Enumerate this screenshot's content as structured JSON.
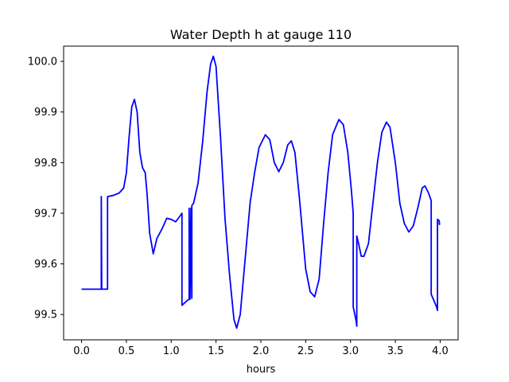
{
  "chart_data": {
    "type": "line",
    "title": "Water Depth h at gauge 110",
    "xlabel": "hours",
    "ylabel": "",
    "xlim": [
      -0.2,
      4.2
    ],
    "ylim": [
      99.45,
      100.03
    ],
    "xticks": [
      0.0,
      0.5,
      1.0,
      1.5,
      2.0,
      2.5,
      3.0,
      3.5,
      4.0
    ],
    "xtick_labels": [
      "0.0",
      "0.5",
      "1.0",
      "1.5",
      "2.0",
      "2.5",
      "3.0",
      "3.5",
      "4.0"
    ],
    "yticks": [
      99.5,
      99.6,
      99.7,
      99.8,
      99.9,
      100.0
    ],
    "ytick_labels": [
      "99.5",
      "99.6",
      "99.7",
      "99.8",
      "99.9",
      "100.0"
    ],
    "grid": false,
    "series": [
      {
        "color": "#0000ff",
        "points": [
          [
            0.0,
            99.55
          ],
          [
            0.22,
            99.55
          ],
          [
            0.22,
            99.733
          ],
          [
            0.225,
            99.55
          ],
          [
            0.29,
            99.55
          ],
          [
            0.29,
            99.733
          ],
          [
            0.35,
            99.735
          ],
          [
            0.42,
            99.74
          ],
          [
            0.47,
            99.75
          ],
          [
            0.5,
            99.78
          ],
          [
            0.53,
            99.85
          ],
          [
            0.56,
            99.91
          ],
          [
            0.59,
            99.925
          ],
          [
            0.62,
            99.9
          ],
          [
            0.65,
            99.82
          ],
          [
            0.68,
            99.79
          ],
          [
            0.71,
            99.78
          ],
          [
            0.73,
            99.74
          ],
          [
            0.76,
            99.66
          ],
          [
            0.8,
            99.62
          ],
          [
            0.84,
            99.65
          ],
          [
            0.9,
            99.67
          ],
          [
            0.95,
            99.69
          ],
          [
            1.0,
            99.688
          ],
          [
            1.05,
            99.683
          ],
          [
            1.1,
            99.695
          ],
          [
            1.12,
            99.7
          ],
          [
            1.12,
            99.518
          ],
          [
            1.18,
            99.528
          ],
          [
            1.2,
            99.53
          ],
          [
            1.2,
            99.71
          ],
          [
            1.21,
            99.53
          ],
          [
            1.22,
            99.71
          ],
          [
            1.23,
            99.532
          ],
          [
            1.23,
            99.715
          ],
          [
            1.25,
            99.72
          ],
          [
            1.3,
            99.76
          ],
          [
            1.35,
            99.84
          ],
          [
            1.4,
            99.94
          ],
          [
            1.44,
            99.995
          ],
          [
            1.47,
            100.01
          ],
          [
            1.5,
            99.99
          ],
          [
            1.55,
            99.85
          ],
          [
            1.6,
            99.69
          ],
          [
            1.65,
            99.58
          ],
          [
            1.7,
            99.49
          ],
          [
            1.73,
            99.473
          ],
          [
            1.77,
            99.5
          ],
          [
            1.82,
            99.6
          ],
          [
            1.88,
            99.72
          ],
          [
            1.93,
            99.78
          ],
          [
            1.98,
            99.83
          ],
          [
            2.05,
            99.855
          ],
          [
            2.1,
            99.845
          ],
          [
            2.15,
            99.8
          ],
          [
            2.2,
            99.782
          ],
          [
            2.25,
            99.8
          ],
          [
            2.3,
            99.835
          ],
          [
            2.34,
            99.843
          ],
          [
            2.38,
            99.82
          ],
          [
            2.43,
            99.73
          ],
          [
            2.5,
            99.59
          ],
          [
            2.55,
            99.545
          ],
          [
            2.6,
            99.535
          ],
          [
            2.65,
            99.57
          ],
          [
            2.7,
            99.68
          ],
          [
            2.75,
            99.78
          ],
          [
            2.8,
            99.855
          ],
          [
            2.87,
            99.885
          ],
          [
            2.92,
            99.875
          ],
          [
            2.97,
            99.82
          ],
          [
            3.01,
            99.745
          ],
          [
            3.03,
            99.7
          ],
          [
            3.03,
            99.515
          ],
          [
            3.06,
            99.49
          ],
          [
            3.07,
            99.477
          ],
          [
            3.07,
            99.655
          ],
          [
            3.09,
            99.64
          ],
          [
            3.12,
            99.615
          ],
          [
            3.15,
            99.615
          ],
          [
            3.2,
            99.64
          ],
          [
            3.25,
            99.72
          ],
          [
            3.3,
            99.8
          ],
          [
            3.35,
            99.86
          ],
          [
            3.4,
            99.88
          ],
          [
            3.44,
            99.87
          ],
          [
            3.5,
            99.8
          ],
          [
            3.55,
            99.72
          ],
          [
            3.6,
            99.68
          ],
          [
            3.65,
            99.663
          ],
          [
            3.7,
            99.675
          ],
          [
            3.75,
            99.71
          ],
          [
            3.8,
            99.75
          ],
          [
            3.83,
            99.754
          ],
          [
            3.87,
            99.74
          ],
          [
            3.9,
            99.725
          ],
          [
            3.9,
            99.54
          ],
          [
            3.96,
            99.515
          ],
          [
            3.97,
            99.508
          ],
          [
            3.97,
            99.688
          ],
          [
            3.99,
            99.685
          ],
          [
            3.99,
            99.678
          ],
          [
            4.0,
            99.68
          ]
        ]
      }
    ]
  }
}
